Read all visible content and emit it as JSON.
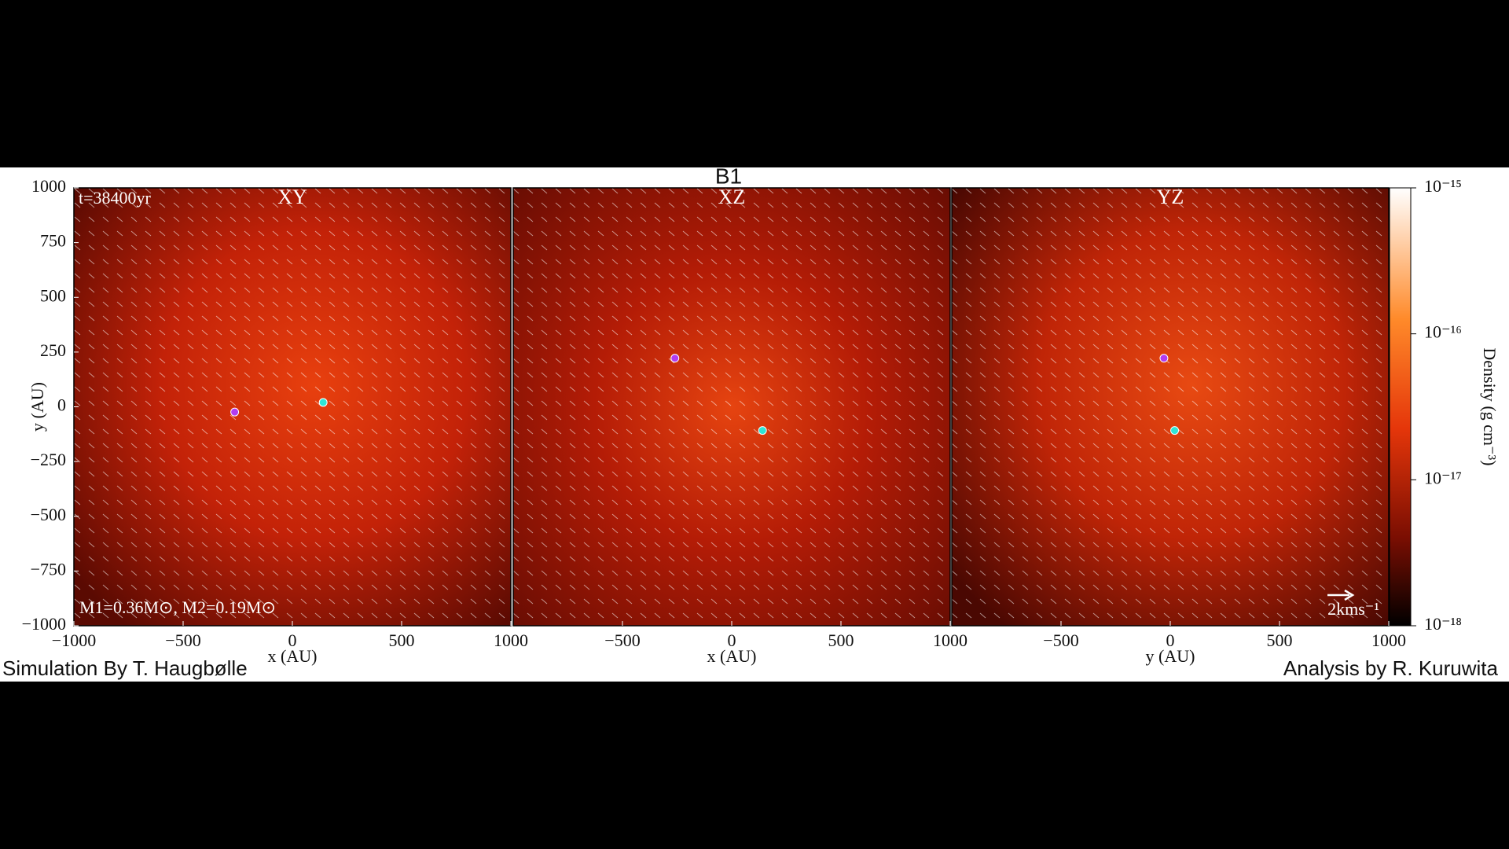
{
  "figure_title": "B1",
  "credits": {
    "left": "Simulation By T. Haugbølle",
    "right": "Analysis by R. Kuruwita"
  },
  "chart_data": [
    {
      "type": "scatter",
      "title": "XY",
      "xlabel": "x (AU)",
      "ylabel": "y (AU)",
      "xlim": [
        -1000,
        1000
      ],
      "ylim": [
        -1000,
        1000
      ],
      "xticks": [
        {
          "value": -1000,
          "label": "−1000"
        },
        {
          "value": -500,
          "label": "−500"
        },
        0,
        500,
        1000
      ],
      "yticks": [
        {
          "value": -1000,
          "label": "−1000"
        },
        {
          "value": -750,
          "label": "−750"
        },
        {
          "value": -500,
          "label": "−500"
        },
        {
          "value": -250,
          "label": "−250"
        },
        0,
        250,
        500,
        750,
        1000
      ],
      "points": {
        "x": [
          141,
          -264
        ],
        "y": [
          20,
          -24
        ],
        "colors": [
          "#2ee6d6",
          "#b23cf0"
        ]
      },
      "annotations": [
        "t=38400yr",
        "M1=0.36M⊙, M2=0.19M⊙"
      ]
    },
    {
      "type": "scatter",
      "title": "XZ",
      "xlabel": "x (AU)",
      "xlim": [
        -1000,
        1000
      ],
      "ylim": [
        -1000,
        1000
      ],
      "xticks": [
        {
          "value": -500,
          "label": "−500"
        },
        0,
        500,
        1000
      ],
      "points": {
        "x": [
          141,
          -260
        ],
        "y": [
          -108,
          222
        ],
        "colors": [
          "#2ee6d6",
          "#b23cf0"
        ]
      }
    },
    {
      "type": "scatter",
      "title": "YZ",
      "xlabel": "y (AU)",
      "xlim": [
        -1000,
        1000
      ],
      "ylim": [
        -1000,
        1000
      ],
      "xticks": [
        {
          "value": -500,
          "label": "−500"
        },
        0,
        500,
        1000
      ],
      "points": {
        "x": [
          20,
          -29
        ],
        "y": [
          -108,
          222
        ],
        "colors": [
          "#2ee6d6",
          "#b23cf0"
        ]
      },
      "annotations": [
        "2kms⁻¹"
      ]
    },
    {
      "type": "colorbar",
      "label": "Density (g cm⁻³)",
      "log": true,
      "ylim": [
        1e-18,
        1e-15
      ],
      "yticks": [
        {
          "value": 1e-18,
          "label": "10⁻¹⁸"
        },
        {
          "value": 1e-17,
          "label": "10⁻¹⁷"
        },
        {
          "value": 1e-16,
          "label": "10⁻¹⁶"
        },
        {
          "value": 1e-15,
          "label": "10⁻¹⁵"
        }
      ]
    }
  ]
}
